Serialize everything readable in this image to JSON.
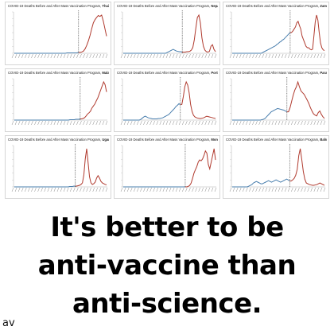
{
  "chart_data": [
    {
      "type": "line",
      "title": "COVID-19 Deaths Before and After Mass Vaccination Program,",
      "country": "Thailand",
      "before": [
        0,
        0,
        0,
        0,
        0,
        0,
        0,
        0,
        0,
        0,
        0,
        0,
        0,
        0,
        0,
        0,
        0,
        0,
        0,
        0,
        0,
        0,
        0,
        0,
        0,
        0,
        0,
        0,
        0,
        0,
        0,
        0,
        1,
        1,
        1,
        1,
        1,
        1,
        1,
        2
      ],
      "after": [
        2,
        3,
        5,
        10,
        18,
        28,
        40,
        55,
        68,
        75,
        80,
        84,
        82,
        85,
        72,
        55,
        38
      ]
    },
    {
      "type": "line",
      "title": "COVID-19 Deaths Before and After Mass Vaccination Program,",
      "country": "Nepal",
      "before": [
        0,
        0,
        0,
        0,
        0,
        0,
        0,
        0,
        0,
        0,
        0,
        0,
        0,
        0,
        0,
        0,
        0,
        0,
        0,
        0,
        0,
        0,
        0,
        0,
        0,
        0,
        0,
        0,
        0,
        2,
        4,
        6,
        8,
        10,
        8,
        6,
        5,
        4,
        4,
        3
      ],
      "after": [
        3,
        3,
        4,
        4,
        5,
        8,
        15,
        35,
        65,
        92,
        98,
        78,
        40,
        18,
        8,
        4,
        3,
        5,
        18,
        22,
        10,
        4
      ]
    },
    {
      "type": "line",
      "title": "COVID-19 Deaths Before and After Mass Vaccination Program,",
      "country": "Zambia",
      "before": [
        0,
        0,
        0,
        0,
        0,
        0,
        0,
        0,
        0,
        0,
        0,
        0,
        0,
        0,
        0,
        0,
        0,
        0,
        0,
        0,
        0,
        0,
        0,
        1,
        2,
        3,
        4,
        5,
        6,
        7,
        8,
        9,
        10,
        11,
        13,
        14,
        16,
        17,
        19,
        20,
        22,
        24,
        26,
        28,
        30
      ],
      "after": [
        30,
        32,
        35,
        38,
        44,
        46,
        40,
        35,
        25,
        20,
        15,
        10,
        8,
        8,
        6,
        5,
        6,
        25,
        45,
        55,
        48,
        30,
        15,
        8,
        5,
        4
      ]
    },
    {
      "type": "line",
      "title": "COVID-19 Deaths Before and After Mass Vaccination Program,",
      "country": "Malaysia",
      "before": [
        0,
        0,
        0,
        0,
        0,
        0,
        0,
        0,
        0,
        0,
        0,
        0,
        0,
        0,
        0,
        0,
        0,
        0,
        0,
        0,
        0,
        0,
        0,
        0,
        0,
        0,
        0,
        0,
        0,
        0,
        0,
        0,
        0,
        0,
        0,
        0,
        0,
        0,
        1,
        1,
        1,
        1,
        2,
        2,
        2,
        3
      ],
      "after": [
        3,
        4,
        6,
        10,
        15,
        18,
        22,
        30,
        35,
        40,
        48,
        55,
        65,
        75,
        85,
        95,
        88,
        70
      ]
    },
    {
      "type": "line",
      "title": "COVID-19 Deaths Before and After Mass Vaccination Program,",
      "country": "Portugal",
      "before": [
        0,
        0,
        0,
        0,
        0,
        0,
        0,
        0,
        0,
        0,
        0,
        0,
        2,
        5,
        8,
        10,
        8,
        6,
        5,
        4,
        3,
        3,
        3,
        3,
        4,
        4,
        5,
        6,
        8,
        10,
        12,
        14,
        18,
        22,
        26,
        30,
        35,
        38,
        42,
        40
      ],
      "after": [
        40,
        60,
        85,
        98,
        90,
        70,
        40,
        22,
        12,
        8,
        6,
        5,
        4,
        4,
        5,
        6,
        8,
        10,
        9,
        8,
        7,
        6,
        5,
        4
      ]
    },
    {
      "type": "line",
      "title": "COVID-19 Deaths Before and After Mass Vaccination Program,",
      "country": "Paraguay",
      "before": [
        0,
        0,
        0,
        0,
        0,
        0,
        0,
        0,
        0,
        0,
        0,
        0,
        0,
        0,
        0,
        0,
        0,
        0,
        0,
        1,
        2,
        4,
        8,
        12,
        16,
        20,
        22,
        24,
        26,
        28,
        27,
        26,
        25,
        24,
        22,
        20
      ],
      "after": [
        20,
        30,
        45,
        60,
        72,
        80,
        92,
        80,
        70,
        66,
        62,
        55,
        48,
        40,
        30,
        22,
        15,
        12,
        10,
        18,
        22,
        14,
        8,
        4
      ]
    },
    {
      "type": "line",
      "title": "COVID-19 Deaths Before and After Mass Vaccination Program,",
      "country": "Uganda",
      "before": [
        0,
        0,
        0,
        0,
        0,
        0,
        0,
        0,
        0,
        0,
        0,
        0,
        0,
        0,
        0,
        0,
        0,
        0,
        0,
        0,
        0,
        0,
        0,
        0,
        0,
        0,
        0,
        0,
        0,
        0,
        0,
        0,
        0,
        0,
        0,
        0,
        0,
        0,
        0,
        1,
        1,
        1,
        2,
        2
      ],
      "after": [
        2,
        3,
        4,
        6,
        10,
        30,
        70,
        95,
        60,
        25,
        10,
        6,
        8,
        12,
        22,
        28,
        22,
        14,
        10,
        8,
        6,
        5
      ]
    },
    {
      "type": "line",
      "title": "COVID-19 Deaths Before and After Mass Vaccination Program,",
      "country": "Mongolia",
      "before": [
        0,
        0,
        0,
        0,
        0,
        0,
        0,
        0,
        0,
        0,
        0,
        0,
        0,
        0,
        0,
        0,
        0,
        0,
        0,
        0,
        0,
        0,
        0,
        0,
        0,
        0,
        0,
        0,
        0,
        0,
        0,
        0,
        0,
        0,
        0,
        0,
        0,
        0,
        0,
        0,
        0,
        0,
        0,
        0
      ],
      "after": [
        0,
        1,
        3,
        8,
        18,
        30,
        38,
        45,
        55,
        60,
        58,
        62,
        70,
        80,
        75,
        50,
        40,
        55,
        70,
        85,
        60
      ]
    },
    {
      "type": "line",
      "title": "COVID-19 Deaths Before and After Mass Vaccination Program,",
      "country": "Bahrain",
      "before": [
        0,
        0,
        0,
        0,
        0,
        0,
        0,
        0,
        0,
        0,
        0,
        2,
        4,
        6,
        10,
        12,
        14,
        12,
        10,
        8,
        8,
        10,
        12,
        14,
        16,
        14,
        12,
        14,
        16,
        18,
        16,
        14,
        12,
        14,
        16,
        18,
        20,
        18,
        15
      ],
      "after": [
        15,
        18,
        22,
        30,
        45,
        80,
        98,
        70,
        40,
        20,
        10,
        8,
        6,
        5,
        4,
        4,
        5,
        6,
        8,
        10,
        8,
        6,
        4
      ]
    }
  ],
  "slogan": {
    "line1": "It's better to be",
    "line2": "anti-vaccine than",
    "line3": "anti-science."
  },
  "signature": "av",
  "colors": {
    "before": "#4a7fae",
    "after": "#b03a2e",
    "marker": "#333333"
  }
}
